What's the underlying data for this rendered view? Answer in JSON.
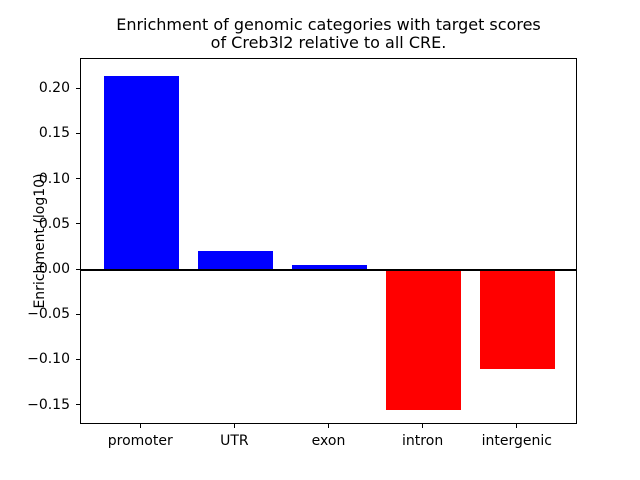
{
  "figure": {
    "title": "Enrichment of genomic categories with target scores\nof Creb3l2 relative to all CRE.",
    "ylabel": "Enrichment (log10)"
  },
  "chart_data": {
    "type": "bar",
    "title": "Enrichment of genomic categories with target scores of Creb3l2 relative to all CRE.",
    "xlabel": "",
    "ylabel": "Enrichment (log10)",
    "categories": [
      "promoter",
      "UTR",
      "exon",
      "intron",
      "intergenic"
    ],
    "values": [
      0.215,
      0.021,
      0.006,
      -0.155,
      -0.11
    ],
    "positive_color": "#0000ff",
    "negative_color": "#ff0000",
    "bar_width": 0.8,
    "baseline": 0,
    "zero_line": true,
    "grid": false,
    "legend": null,
    "ylim": [
      -0.1715,
      0.2335
    ],
    "xlim": [
      -0.64,
      4.64
    ],
    "yticks": [
      0.2,
      0.15,
      0.1,
      0.05,
      0,
      -0.05,
      -0.1,
      -0.15
    ],
    "ytick_labels": [
      "0.20",
      "0.15",
      "0.10",
      "0.05",
      "0.00",
      "−0.05",
      "−0.10",
      "−0.15"
    ]
  }
}
